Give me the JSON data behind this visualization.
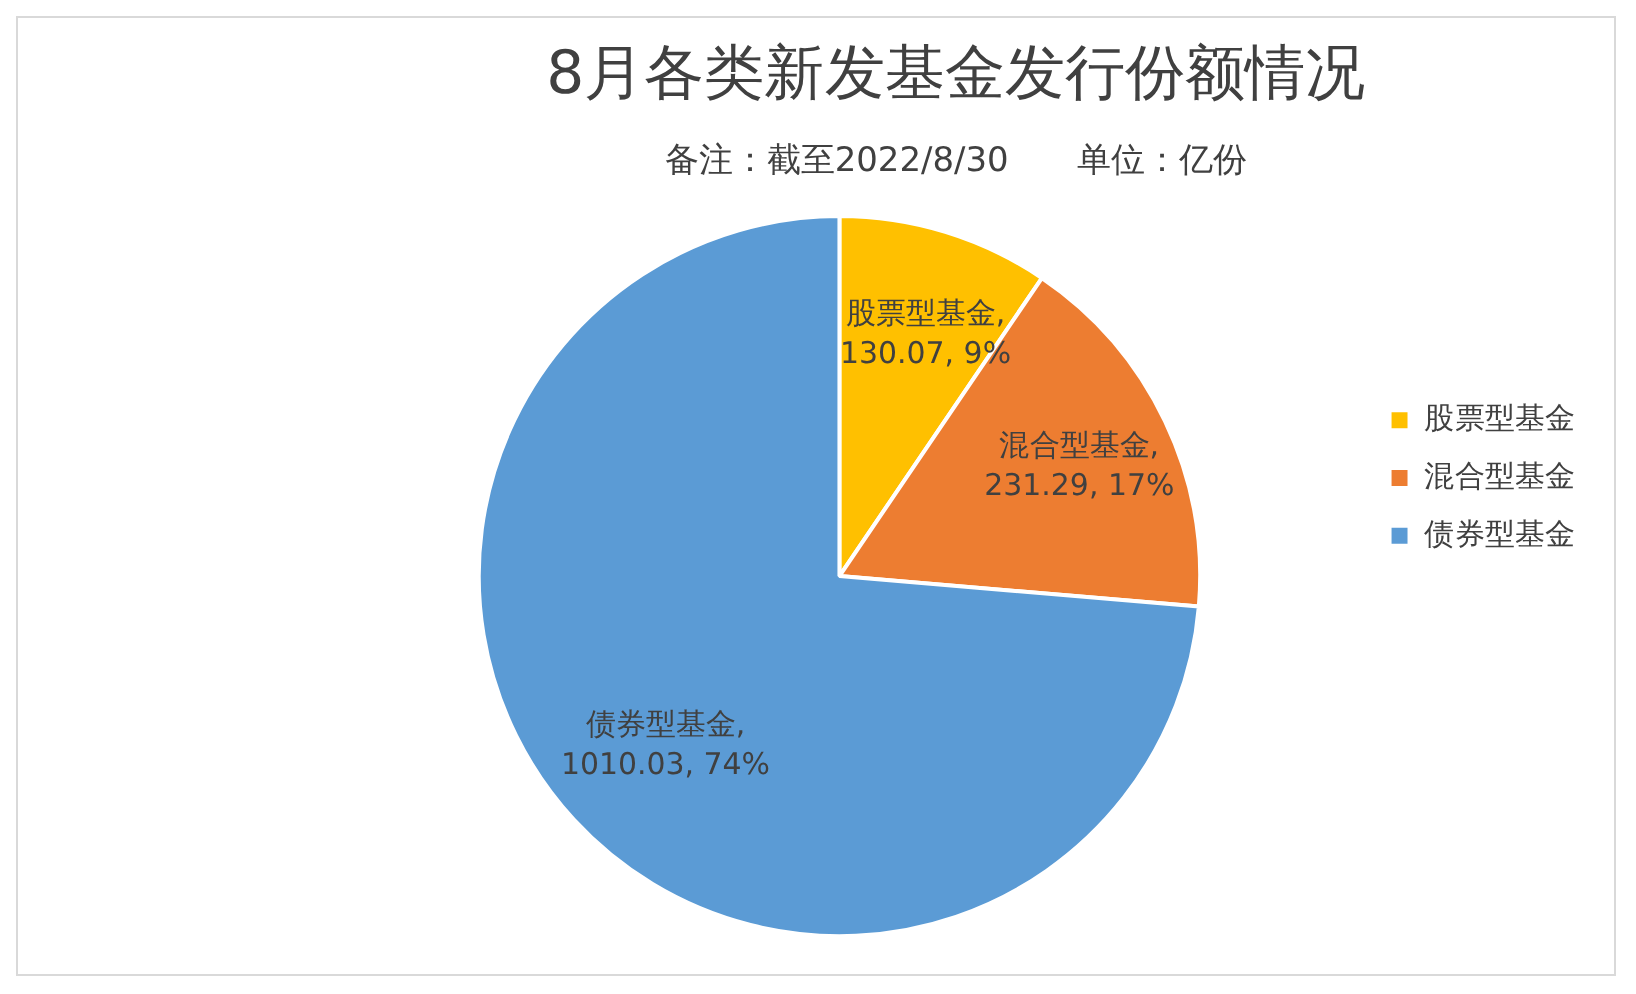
{
  "chart_data": {
    "type": "pie",
    "title": "8月各类新发基金发行份额情况",
    "subtitle": "备注：截至2022/8/30　　单位：亿份",
    "categories": [
      "股票型基金",
      "混合型基金",
      "债券型基金"
    ],
    "values": [
      130.07,
      231.29,
      1010.03
    ],
    "colors": [
      "#ffc000",
      "#ed7d31",
      "#5b9bd5"
    ],
    "value_labels": [
      "股票型基金,\n130.07, 9%",
      "混合型基金,\n231.29, 17%",
      "债券型基金,\n1010.03, 74%"
    ],
    "legend": "right"
  }
}
